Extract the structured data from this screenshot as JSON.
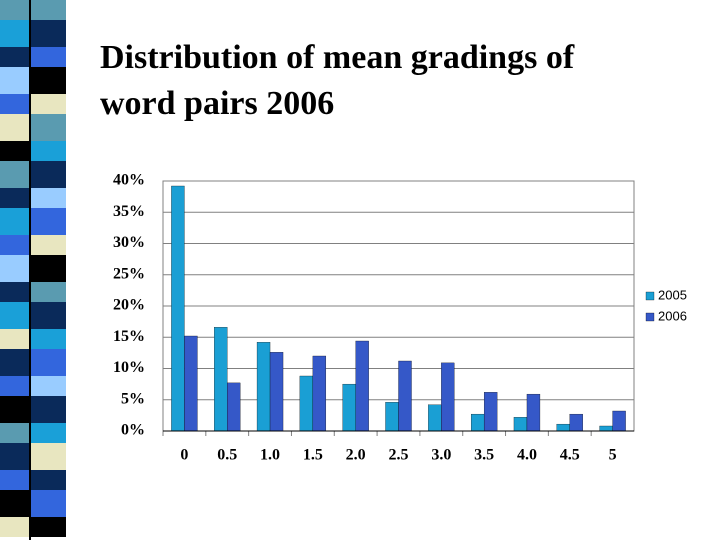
{
  "chart_data": {
    "type": "bar",
    "title": "Distribution of mean gradings of word pairs 2006",
    "categories": [
      "0",
      "0.5",
      "1.0",
      "1.5",
      "2.0",
      "2.5",
      "3.0",
      "3.5",
      "4.0",
      "4.5",
      "5"
    ],
    "series": [
      {
        "name": "2005",
        "color": "#1a9fd4",
        "values": [
          39.2,
          16.6,
          14.2,
          8.8,
          7.5,
          4.6,
          4.2,
          2.7,
          2.2,
          1.1,
          0.8
        ]
      },
      {
        "name": "2006",
        "color": "#3558c8",
        "values": [
          15.2,
          7.7,
          12.6,
          12,
          14.4,
          11.2,
          10.9,
          6.2,
          5.9,
          2.7,
          3.2
        ]
      }
    ],
    "ylim": [
      0,
      40
    ],
    "yticks": [
      {
        "value": 0,
        "label": "0%"
      },
      {
        "value": 5,
        "label": "5%"
      },
      {
        "value": 10,
        "label": "10%"
      },
      {
        "value": 15,
        "label": "15%"
      },
      {
        "value": 20,
        "label": "20%"
      },
      {
        "value": 25,
        "label": "25%"
      },
      {
        "value": 30,
        "label": "30%"
      },
      {
        "value": 35,
        "label": "35%"
      },
      {
        "value": 40,
        "label": "40%"
      }
    ],
    "grid": true,
    "legend": "right"
  }
}
